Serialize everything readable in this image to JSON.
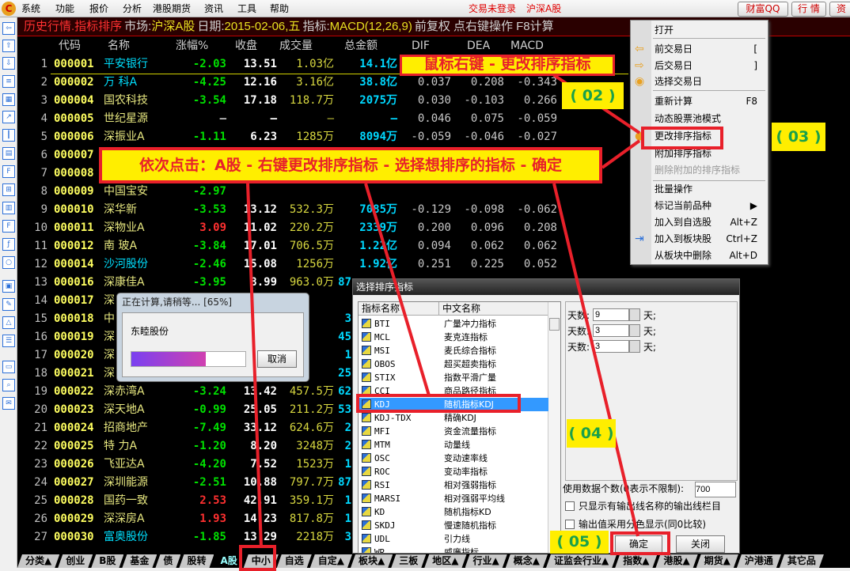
{
  "menubar": {
    "items": [
      "系统",
      "功能",
      "报价",
      "分析",
      "港股期货",
      "资讯",
      "工具",
      "帮助"
    ],
    "trade_status": "交易未登录",
    "market": "沪深A股",
    "buttons": [
      "财富QQ",
      "行 情",
      "资"
    ]
  },
  "header": {
    "title": "历史行情.指标排序",
    "market_label": "市场:",
    "market": "沪深A股",
    "date_label": "日期:",
    "date": "2015-02-06,五",
    "indicator_label": "指标:",
    "indicator": "MACD(12,26,9)",
    "rest": "前复权 点右键操作 F8计算"
  },
  "columns": [
    "代码",
    "名称",
    "涨幅%",
    "收盘",
    "成交量",
    "总金额",
    "DIF",
    "DEA",
    "MACD"
  ],
  "rows": [
    {
      "i": "1",
      "code": "000001",
      "name": "平安银行",
      "nc": "#00e0ff",
      "chg": "-2.03",
      "close": "13.51",
      "vol": "1.03亿",
      "amt": "14.1亿",
      "dif": "",
      "dea": "",
      "macd": ""
    },
    {
      "i": "2",
      "code": "000002",
      "name": "万  科A",
      "nc": "#00e0ff",
      "chg": "-4.25",
      "close": "12.16",
      "vol": "3.16亿",
      "amt": "38.8亿",
      "dif": "0.037",
      "dea": "0.208",
      "macd": "-0.343"
    },
    {
      "i": "3",
      "code": "000004",
      "name": "国农科技",
      "nc": "#e8e880",
      "chg": "-3.54",
      "close": "17.18",
      "vol": "118.7万",
      "amt": "2075万",
      "dif": "0.030",
      "dea": "-0.103",
      "macd": "0.266"
    },
    {
      "i": "4",
      "code": "000005",
      "name": "世纪星源",
      "nc": "#e8e880",
      "chg": "—",
      "close": "—",
      "vol": "—",
      "amt": "—",
      "dif": "0.046",
      "dea": "0.075",
      "macd": "-0.059"
    },
    {
      "i": "5",
      "code": "000006",
      "name": "深振业A",
      "nc": "#e8e880",
      "chg": "-1.11",
      "close": "6.23",
      "vol": "1285万",
      "amt": "8094万",
      "dif": "-0.059",
      "dea": "-0.046",
      "macd": "-0.027"
    },
    {
      "i": "6",
      "code": "000007",
      "name": "",
      "nc": "#e8e880",
      "chg": "",
      "close": "",
      "vol": "",
      "amt": "",
      "dif": "",
      "dea": "",
      "macd": ""
    },
    {
      "i": "7",
      "code": "000008",
      "name": "",
      "nc": "#e8e880",
      "chg": "",
      "close": "",
      "vol": "",
      "amt": "",
      "dif": "",
      "dea": "",
      "macd": ""
    },
    {
      "i": "8",
      "code": "000009",
      "name": "中国宝安",
      "nc": "#e8e880",
      "chg": "-2.97",
      "close": "",
      "vol": "",
      "amt": "",
      "dif": "",
      "dea": "",
      "macd": ""
    },
    {
      "i": "9",
      "code": "000010",
      "name": "深华新",
      "nc": "#e8e880",
      "chg": "-3.53",
      "close": "13.12",
      "vol": "532.3万",
      "amt": "7085万",
      "dif": "-0.129",
      "dea": "-0.098",
      "macd": "-0.062"
    },
    {
      "i": "10",
      "code": "000011",
      "name": "深物业A",
      "nc": "#e8e880",
      "chg": "3.09",
      "close": "11.02",
      "vol": "220.2万",
      "amt": "2339万",
      "dif": "0.200",
      "dea": "0.096",
      "macd": "0.208"
    },
    {
      "i": "11",
      "code": "000012",
      "name": "南  玻A",
      "nc": "#e8e880",
      "chg": "-3.84",
      "close": "17.01",
      "vol": "706.5万",
      "amt": "1.22亿",
      "dif": "0.094",
      "dea": "0.062",
      "macd": "0.062"
    },
    {
      "i": "12",
      "code": "000014",
      "name": "沙河股份",
      "nc": "#00e0ff",
      "chg": "-2.46",
      "close": "15.08",
      "vol": "1256万",
      "amt": "1.92亿",
      "dif": "0.251",
      "dea": "0.225",
      "macd": "0.052"
    },
    {
      "i": "13",
      "code": "000016",
      "name": "深康佳A",
      "nc": "#e8e880",
      "chg": "-3.95",
      "close": "8.99",
      "vol": "963.0万",
      "amt": "87",
      "dif": "",
      "dea": "",
      "macd": ""
    },
    {
      "i": "14",
      "code": "000017",
      "name": "深",
      "nc": "#e8e880",
      "chg": "",
      "close": "",
      "vol": "",
      "amt": "",
      "dif": "",
      "dea": "",
      "macd": ""
    },
    {
      "i": "15",
      "code": "000018",
      "name": "中",
      "nc": "#e8e880",
      "chg": "",
      "close": "",
      "vol": "",
      "amt": "3",
      "dif": "",
      "dea": "",
      "macd": ""
    },
    {
      "i": "16",
      "code": "000019",
      "name": "深",
      "nc": "#e8e880",
      "chg": "",
      "close": "",
      "vol": "",
      "amt": "45",
      "dif": "",
      "dea": "",
      "macd": ""
    },
    {
      "i": "17",
      "code": "000020",
      "name": "深",
      "nc": "#e8e880",
      "chg": "",
      "close": "",
      "vol": "",
      "amt": "1",
      "dif": "",
      "dea": "",
      "macd": ""
    },
    {
      "i": "18",
      "code": "000021",
      "name": "深",
      "nc": "#e8e880",
      "chg": "",
      "close": "",
      "vol": "",
      "amt": "25",
      "dif": "",
      "dea": "",
      "macd": ""
    },
    {
      "i": "19",
      "code": "000022",
      "name": "深赤湾A",
      "nc": "#e8e880",
      "chg": "-3.24",
      "close": "13.42",
      "vol": "457.5万",
      "amt": "62",
      "dif": "",
      "dea": "",
      "macd": ""
    },
    {
      "i": "20",
      "code": "000023",
      "name": "深天地A",
      "nc": "#e8e880",
      "chg": "-0.99",
      "close": "25.05",
      "vol": "211.2万",
      "amt": "53",
      "dif": "",
      "dea": "",
      "macd": ""
    },
    {
      "i": "21",
      "code": "000024",
      "name": "招商地产",
      "nc": "#e8e880",
      "chg": "-7.49",
      "close": "33.12",
      "vol": "624.6万",
      "amt": "2",
      "dif": "",
      "dea": "",
      "macd": ""
    },
    {
      "i": "22",
      "code": "000025",
      "name": "特  力A",
      "nc": "#e8e880",
      "chg": "-1.20",
      "close": "8.20",
      "vol": "3248万",
      "amt": "2",
      "dif": "",
      "dea": "",
      "macd": ""
    },
    {
      "i": "23",
      "code": "000026",
      "name": "飞亚达A",
      "nc": "#e8e880",
      "chg": "-4.20",
      "close": "7.52",
      "vol": "1523万",
      "amt": "1",
      "dif": "",
      "dea": "",
      "macd": ""
    },
    {
      "i": "24",
      "code": "000027",
      "name": "深圳能源",
      "nc": "#e8e880",
      "chg": "-2.51",
      "close": "10.88",
      "vol": "797.7万",
      "amt": "87",
      "dif": "",
      "dea": "",
      "macd": ""
    },
    {
      "i": "25",
      "code": "000028",
      "name": "国药一致",
      "nc": "#e8e880",
      "chg": "2.53",
      "close": "42.91",
      "vol": "359.1万",
      "amt": "1",
      "dif": "",
      "dea": "",
      "macd": ""
    },
    {
      "i": "26",
      "code": "000029",
      "name": "深深房A",
      "nc": "#e8e880",
      "chg": "1.93",
      "close": "14.23",
      "vol": "817.8万",
      "amt": "1",
      "dif": "",
      "dea": "",
      "macd": ""
    },
    {
      "i": "27",
      "code": "000030",
      "name": "富奥股份",
      "nc": "#00e0ff",
      "chg": "-1.85",
      "close": "13.29",
      "vol": "2218万",
      "amt": "3",
      "dif": "",
      "dea": "",
      "macd": ""
    }
  ],
  "context_menu": {
    "items": [
      {
        "label": "打开",
        "shortcut": "",
        "icon": ""
      },
      {
        "label": "前交易日",
        "shortcut": "[",
        "icon": "arrow-left-icon"
      },
      {
        "label": "后交易日",
        "shortcut": "]",
        "icon": "arrow-right-icon"
      },
      {
        "label": "选择交易日",
        "shortcut": "",
        "icon": "calendar-icon"
      },
      {
        "label": "重新计算",
        "shortcut": "F8",
        "icon": ""
      },
      {
        "label": "动态股票池模式",
        "shortcut": "",
        "icon": ""
      },
      {
        "label": "更改排序指标",
        "shortcut": "",
        "icon": "sort-indicator-icon"
      },
      {
        "label": "附加排序指标",
        "shortcut": "",
        "icon": ""
      },
      {
        "label": "删除附加的排序指标",
        "shortcut": "",
        "icon": "",
        "disabled": true
      },
      {
        "label": "批量操作",
        "shortcut": "",
        "icon": ""
      },
      {
        "label": "标记当前品种",
        "shortcut": "▶",
        "icon": ""
      },
      {
        "label": "加入到自选股",
        "shortcut": "Alt+Z",
        "icon": ""
      },
      {
        "label": "加入到板块股",
        "shortcut": "Ctrl+Z",
        "icon": "add-to-block-icon"
      },
      {
        "label": "从板块中删除",
        "shortcut": "Alt+D",
        "icon": ""
      }
    ]
  },
  "progress_dialog": {
    "title": "正在计算,请稍等... [65%]",
    "stock": "东睦股份",
    "progress_percent": 65,
    "cancel": "取消"
  },
  "select_dialog": {
    "title": "选择排序指标",
    "col_en": "指标名称",
    "col_cn": "中文名称",
    "items": [
      [
        "BTI",
        "广量冲力指标"
      ],
      [
        "MCL",
        "麦克连指标"
      ],
      [
        "MSI",
        "麦氏综合指标"
      ],
      [
        "OBOS",
        "超买超卖指标"
      ],
      [
        "STIX",
        "指数平滑广量"
      ],
      [
        "CCI",
        "商品路径指标"
      ],
      [
        "KDJ",
        "随机指标KDJ"
      ],
      [
        "KDJ-TDX",
        "精确KDJ"
      ],
      [
        "MFI",
        "资金流量指标"
      ],
      [
        "MTM",
        "动量线"
      ],
      [
        "OSC",
        "变动速率线"
      ],
      [
        "ROC",
        "变动率指标"
      ],
      [
        "RSI",
        "相对强弱指标"
      ],
      [
        "MARSI",
        "相对强弱平均线"
      ],
      [
        "KD",
        "随机指标KD"
      ],
      [
        "SKDJ",
        "慢速随机指标"
      ],
      [
        "UDL",
        "引力线"
      ],
      [
        "WR",
        "威廉指标"
      ]
    ],
    "selected": "KDJ",
    "params": [
      {
        "label": "天数:",
        "value": "9",
        "unit": "天;"
      },
      {
        "label": "天数:",
        "value": "3",
        "unit": "天;"
      },
      {
        "label": "天数:",
        "value": "3",
        "unit": "天;"
      }
    ],
    "data_count_label": "使用数据个数(0表示不限制):",
    "data_count": "700",
    "check1": "只显示有输出线名称的输出线栏目",
    "check2": "输出值采用分色显示(同0比较)",
    "ok": "确定",
    "close": "关闭"
  },
  "tabs": [
    "分类▲",
    "创业",
    "B股",
    "基金",
    "债",
    "股转",
    "A股",
    "中小",
    "自选",
    "自定▲",
    "板块▲",
    "三板",
    "地区▲",
    "行业▲",
    "概念▲",
    "证监会行业▲",
    "指数▲",
    "港股▲",
    "期货▲",
    "沪港通",
    "其它品"
  ],
  "active_tab": "A股",
  "annotations": {
    "callout1": "鼠标右键 - 更改排序指标",
    "callout2": "依次点击：A股 - 右键更改排序指标 - 选择想排序的指标 - 确定",
    "n02": "( 02 )",
    "n03": "( 03 )",
    "n04": "( 04 )",
    "n05": "( 05 )"
  },
  "colors": {
    "up": "#ff3030",
    "down": "#00e000",
    "annotation_red": "#e8202a",
    "annotation_yellow": "#ffee00"
  }
}
